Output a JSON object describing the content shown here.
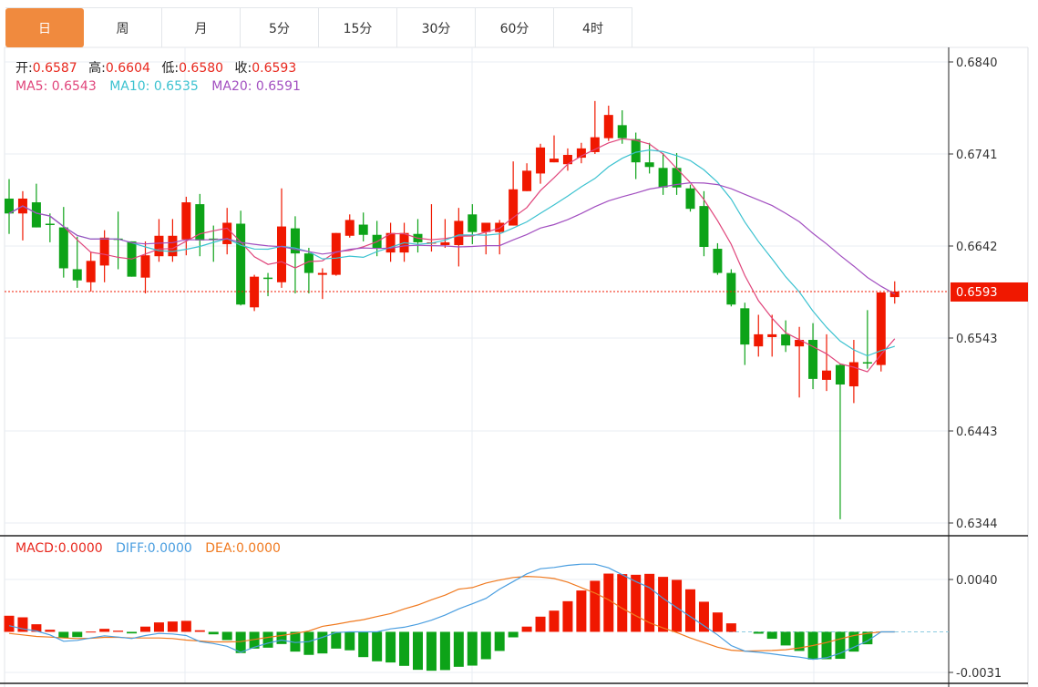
{
  "tabs": [
    "日",
    "周",
    "月",
    "5分",
    "15分",
    "30分",
    "60分",
    "4时"
  ],
  "active_tab": 0,
  "ohlc_legend": {
    "open_label": "开:",
    "open": "0.6587",
    "high_label": "高:",
    "high": "0.6604",
    "low_label": "低:",
    "low": "0.6580",
    "close_label": "收:",
    "close": "0.6593"
  },
  "ma_legend": {
    "ma5_label": "MA5:",
    "ma5": "0.6543",
    "ma10_label": "MA10:",
    "ma10": "0.6535",
    "ma20_label": "MA20:",
    "ma20": "0.6591"
  },
  "macd_legend": {
    "macd_label": "MACD:",
    "macd": "0.0000",
    "diff_label": "DIFF:",
    "diff": "0.0000",
    "dea_label": "DEA:",
    "dea": "0.0000"
  },
  "colors": {
    "up": "#f01800",
    "down": "#0da318",
    "ma5": "#e0457b",
    "ma10": "#3cc2d0",
    "ma20": "#a24fc0",
    "diff": "#4a9ee0",
    "dea": "#f07a20",
    "active_tab": "#f08a3e"
  },
  "chart_data": [
    {
      "type": "candlestick",
      "title": "",
      "ylim": [
        0.6344,
        0.684
      ],
      "y_ticks": [
        "0.6840",
        "0.6741",
        "0.6642",
        "0.6543",
        "0.6443",
        "0.6344"
      ],
      "last_price": "0.6593",
      "ma_periods": [
        5,
        10,
        20
      ],
      "grid": true,
      "ohlc": [
        [
          0.6693,
          0.6714,
          0.6655,
          0.6677
        ],
        [
          0.6677,
          0.6701,
          0.6648,
          0.6693
        ],
        [
          0.6689,
          0.6709,
          0.6662,
          0.6662
        ],
        [
          0.6666,
          0.6677,
          0.6646,
          0.6665
        ],
        [
          0.6662,
          0.6684,
          0.6608,
          0.6618
        ],
        [
          0.6617,
          0.6652,
          0.6597,
          0.6605
        ],
        [
          0.6603,
          0.6636,
          0.6593,
          0.6626
        ],
        [
          0.6621,
          0.6659,
          0.6603,
          0.6651
        ],
        [
          0.665,
          0.6679,
          0.6617,
          0.6649
        ],
        [
          0.6647,
          0.6647,
          0.6609,
          0.6609
        ],
        [
          0.6608,
          0.6647,
          0.6591,
          0.6632
        ],
        [
          0.6631,
          0.6671,
          0.6625,
          0.6653
        ],
        [
          0.6631,
          0.6671,
          0.6625,
          0.6653
        ],
        [
          0.6649,
          0.6695,
          0.6632,
          0.6689
        ],
        [
          0.6687,
          0.6698,
          0.6631,
          0.6648
        ],
        [
          0.665,
          0.6664,
          0.6625,
          0.6649
        ],
        [
          0.6644,
          0.6683,
          0.6633,
          0.6667
        ],
        [
          0.6666,
          0.668,
          0.6578,
          0.6579
        ],
        [
          0.6576,
          0.6611,
          0.6572,
          0.6609
        ],
        [
          0.6608,
          0.6613,
          0.6588,
          0.6607
        ],
        [
          0.6603,
          0.6704,
          0.6597,
          0.6663
        ],
        [
          0.6661,
          0.6674,
          0.6591,
          0.6634
        ],
        [
          0.6634,
          0.664,
          0.6591,
          0.6613
        ],
        [
          0.6611,
          0.6618,
          0.6585,
          0.6613
        ],
        [
          0.6611,
          0.6656,
          0.661,
          0.6656
        ],
        [
          0.6653,
          0.6676,
          0.6651,
          0.667
        ],
        [
          0.6665,
          0.6678,
          0.6647,
          0.6654
        ],
        [
          0.6654,
          0.6669,
          0.6631,
          0.664
        ],
        [
          0.6635,
          0.6667,
          0.6625,
          0.6656
        ],
        [
          0.6635,
          0.6667,
          0.6625,
          0.6656
        ],
        [
          0.6655,
          0.6671,
          0.6635,
          0.6646
        ],
        [
          0.6645,
          0.6687,
          0.6636,
          0.6646
        ],
        [
          0.6643,
          0.6671,
          0.664,
          0.6646
        ],
        [
          0.6643,
          0.6683,
          0.662,
          0.6669
        ],
        [
          0.6676,
          0.6687,
          0.6644,
          0.6657
        ],
        [
          0.6657,
          0.6667,
          0.6633,
          0.6667
        ],
        [
          0.6657,
          0.667,
          0.6633,
          0.6667
        ],
        [
          0.6664,
          0.6733,
          0.6664,
          0.6703
        ],
        [
          0.6701,
          0.6731,
          0.6701,
          0.6723
        ],
        [
          0.672,
          0.6752,
          0.6709,
          0.6748
        ],
        [
          0.6732,
          0.6761,
          0.6732,
          0.6736
        ],
        [
          0.673,
          0.6747,
          0.6723,
          0.674
        ],
        [
          0.6737,
          0.6753,
          0.6731,
          0.6747
        ],
        [
          0.6743,
          0.6798,
          0.6741,
          0.6759
        ],
        [
          0.6758,
          0.6793,
          0.6755,
          0.6783
        ],
        [
          0.6772,
          0.6788,
          0.6752,
          0.6758
        ],
        [
          0.6757,
          0.6764,
          0.6714,
          0.6732
        ],
        [
          0.6732,
          0.6753,
          0.672,
          0.6727
        ],
        [
          0.6726,
          0.6742,
          0.6697,
          0.6705
        ],
        [
          0.6726,
          0.6742,
          0.6697,
          0.6705
        ],
        [
          0.6704,
          0.6708,
          0.6679,
          0.6682
        ],
        [
          0.6685,
          0.6701,
          0.6631,
          0.6641
        ],
        [
          0.6639,
          0.6645,
          0.6611,
          0.6613
        ],
        [
          0.6613,
          0.6617,
          0.6577,
          0.6579
        ],
        [
          0.6575,
          0.6581,
          0.6514,
          0.6536
        ],
        [
          0.6534,
          0.6568,
          0.6523,
          0.6547
        ],
        [
          0.6544,
          0.6568,
          0.6523,
          0.6547
        ],
        [
          0.6547,
          0.6562,
          0.6528,
          0.6535
        ],
        [
          0.6534,
          0.6555,
          0.6479,
          0.6541
        ],
        [
          0.6541,
          0.6559,
          0.6488,
          0.6499
        ],
        [
          0.6498,
          0.6547,
          0.6486,
          0.6508
        ],
        [
          0.6514,
          0.6515,
          0.6348,
          0.6493
        ],
        [
          0.6491,
          0.6541,
          0.6473,
          0.6517
        ],
        [
          0.6517,
          0.6573,
          0.651,
          0.6516
        ],
        [
          0.6514,
          0.6592,
          0.6507,
          0.6592
        ],
        [
          0.6587,
          0.6604,
          0.658,
          0.6593
        ]
      ]
    },
    {
      "type": "bar+line",
      "title": "MACD",
      "ylim": [
        -0.0031,
        0.004
      ],
      "y_ticks": [
        "0.0040",
        "-0.0031"
      ],
      "macd": [
        0.00123,
        0.00111,
        0.00058,
        0.00016,
        -0.00046,
        -0.0004,
        2e-05,
        0.00023,
        9e-05,
        -0.00012,
        0.0004,
        0.00072,
        0.00079,
        0.00084,
        0.00012,
        -0.00019,
        -0.00063,
        -0.00162,
        -0.00128,
        -0.00121,
        -0.00093,
        -0.00151,
        -0.00176,
        -0.00165,
        -0.00128,
        -0.00141,
        -0.00193,
        -0.00225,
        -0.00234,
        -0.0026,
        -0.0029,
        -0.00297,
        -0.00292,
        -0.00267,
        -0.00258,
        -0.00209,
        -0.00146,
        -0.00042,
        0.0004,
        0.00116,
        0.00162,
        0.00234,
        0.00316,
        0.0039,
        0.00445,
        0.00441,
        0.00436,
        0.00443,
        0.0042,
        0.00397,
        0.00325,
        0.0023,
        0.00148,
        0.00065,
        0,
        -0.00014,
        -0.00053,
        -0.00104,
        -0.00146,
        -0.00211,
        -0.00209,
        -0.00206,
        -0.00151,
        -0.00095,
        0,
        0
      ],
      "diff": [
        0.00047,
        0.00023,
        7e-05,
        -0.00023,
        -0.00072,
        -0.00065,
        -0.00047,
        -0.0003,
        -0.0004,
        -0.00051,
        -0.00028,
        -0.00012,
        -0.00016,
        -0.00028,
        -0.00075,
        -0.00089,
        -0.0011,
        -0.00156,
        -0.00117,
        -0.00086,
        -0.00063,
        -0.00082,
        -0.00075,
        -0.00042,
        -5e-05,
        0,
        0,
        0,
        0.00023,
        0.00035,
        0.00058,
        0.00089,
        0.00128,
        0.00175,
        0.00214,
        0.00256,
        0.00326,
        0.00384,
        0.00443,
        0.00482,
        0.00492,
        0.00508,
        0.00517,
        0.00517,
        0.00489,
        0.00436,
        0.00384,
        0.00338,
        0.00256,
        0.00186,
        0.00117,
        0.00047,
        -0.00023,
        -0.00105,
        -0.00147,
        -0.00156,
        -0.00168,
        -0.00182,
        -0.00193,
        -0.0021,
        -0.00198,
        -0.00163,
        -0.00117,
        -0.0007,
        0,
        0
      ],
      "dea": [
        -0.00012,
        -0.00023,
        -0.00035,
        -0.0004,
        -0.00047,
        -0.00051,
        -0.00049,
        -0.00042,
        -0.00042,
        -0.00047,
        -0.00047,
        -0.00047,
        -0.00051,
        -0.00063,
        -0.0007,
        -0.00077,
        -0.00077,
        -0.00075,
        -0.00058,
        -0.00042,
        -0.00028,
        -0.00012,
        7e-05,
        0.00042,
        0.00058,
        0.00077,
        0.00093,
        0.00117,
        0.0014,
        0.00175,
        0.00205,
        0.00245,
        0.0028,
        0.00326,
        0.00338,
        0.00373,
        0.00396,
        0.00415,
        0.00424,
        0.00419,
        0.00408,
        0.0038,
        0.00338,
        0.00296,
        0.00245,
        0.00179,
        0.00123,
        0.0007,
        0.0003,
        -5e-05,
        -0.00047,
        -0.00082,
        -0.00117,
        -0.0014,
        -0.00147,
        -0.00144,
        -0.00142,
        -0.00137,
        -0.00123,
        -0.00105,
        -0.00082,
        -0.00054,
        -0.00028,
        -0.00012,
        0,
        0
      ]
    }
  ]
}
